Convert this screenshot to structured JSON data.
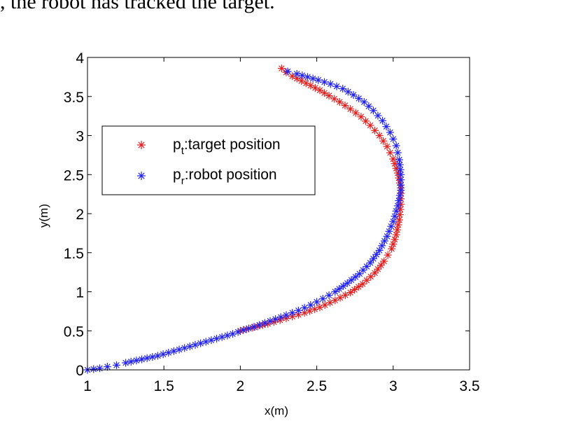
{
  "caption_fragment": ", the robot has tracked the target.",
  "chart_data": {
    "type": "scatter",
    "title": "",
    "xlabel": "x(m)",
    "ylabel": "y(m)",
    "xlim": [
      1,
      3.5
    ],
    "ylim": [
      0,
      4
    ],
    "x_ticks": [
      "1",
      "1.5",
      "2",
      "2.5",
      "3",
      "3.5"
    ],
    "y_ticks": [
      "0",
      "0.5",
      "1",
      "1.5",
      "2",
      "2.5",
      "3",
      "3.5",
      "4"
    ],
    "grid": false,
    "legend_position": "upper-left",
    "series": [
      {
        "name": "target position",
        "label_main": "p",
        "label_sub": "t",
        "label_rest": ":target position",
        "marker": "asterisk",
        "color": "#e02020",
        "x": [
          2.27,
          2.3,
          2.34,
          2.4,
          2.46,
          2.52,
          2.58,
          2.65,
          2.72,
          2.79,
          2.85,
          2.91,
          2.96,
          3.0,
          3.03,
          3.05,
          3.05,
          3.04,
          3.02,
          2.99,
          2.94,
          2.88,
          2.8,
          2.72,
          2.62,
          2.52,
          2.42,
          2.3,
          2.18,
          2.08,
          2.0
        ],
        "y": [
          3.86,
          3.81,
          3.76,
          3.7,
          3.64,
          3.58,
          3.51,
          3.43,
          3.34,
          3.24,
          3.13,
          3.0,
          2.86,
          2.7,
          2.52,
          2.33,
          2.12,
          1.92,
          1.73,
          1.55,
          1.39,
          1.24,
          1.1,
          0.99,
          0.89,
          0.8,
          0.73,
          0.66,
          0.59,
          0.54,
          0.5
        ]
      },
      {
        "name": "robot position",
        "label_main": "p",
        "label_sub": "r",
        "label_rest": ":robot position",
        "marker": "asterisk",
        "color": "#2222ee",
        "x": [
          1.0,
          1.04,
          1.08,
          1.13,
          1.19,
          1.25,
          1.32,
          1.39,
          1.46,
          1.53,
          1.6,
          1.67,
          1.74,
          1.81,
          1.88,
          1.95,
          2.02,
          2.09,
          2.16,
          2.23,
          2.3,
          2.38,
          2.46,
          2.54,
          2.62,
          2.7,
          2.78,
          2.85,
          2.91,
          2.96,
          3.0,
          3.03,
          3.05,
          3.05,
          3.04,
          3.02,
          2.98,
          2.93,
          2.87,
          2.81,
          2.74,
          2.67,
          2.59,
          2.51,
          2.44,
          2.37,
          2.31
        ],
        "y": [
          0.0,
          0.01,
          0.02,
          0.04,
          0.06,
          0.09,
          0.12,
          0.15,
          0.18,
          0.22,
          0.26,
          0.3,
          0.34,
          0.38,
          0.42,
          0.46,
          0.51,
          0.55,
          0.6,
          0.65,
          0.7,
          0.76,
          0.83,
          0.91,
          1.0,
          1.11,
          1.23,
          1.37,
          1.53,
          1.71,
          1.9,
          2.1,
          2.3,
          2.5,
          2.69,
          2.87,
          3.04,
          3.19,
          3.32,
          3.43,
          3.52,
          3.6,
          3.66,
          3.71,
          3.75,
          3.79,
          3.82
        ]
      }
    ]
  }
}
